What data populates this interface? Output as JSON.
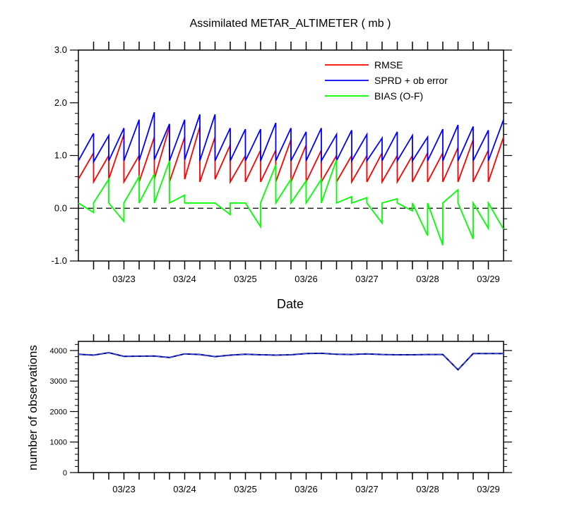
{
  "chart_data": [
    {
      "type": "line",
      "title": "Assimilated METAR_ALTIMETER ( mb )",
      "xlabel": "Date",
      "ylabel": "",
      "ylim": [
        -1.0,
        3.0
      ],
      "yticks": [
        "-1.0",
        "0.0",
        "1.0",
        "2.0",
        "3.0"
      ],
      "xticks": [
        "03/23",
        "03/24",
        "03/25",
        "03/26",
        "03/27",
        "03/28",
        "03/29"
      ],
      "xtick_values": [
        2.75,
        3.75,
        4.75,
        5.75,
        6.75,
        7.75,
        8.75
      ],
      "xlim": [
        2.0,
        9.0
      ],
      "reference_line": 0.0,
      "legend": [
        "RMSE",
        "SPRD + ob error",
        "BIAS (O-F)"
      ],
      "sawtooth_x": [
        2.0,
        2.25,
        2.5,
        2.75,
        3.0,
        3.25,
        3.5,
        3.75,
        4.0,
        4.25,
        4.5,
        4.75,
        5.0,
        5.25,
        5.5,
        5.75,
        6.0,
        6.25,
        6.5,
        6.75,
        7.0,
        7.25,
        7.5,
        7.75,
        8.0,
        8.25,
        8.5,
        8.75
      ],
      "series": [
        {
          "name": "RMSE",
          "color": "#ff0000",
          "start": [
            0.55,
            0.5,
            0.55,
            0.5,
            0.5,
            0.55,
            0.5,
            0.55,
            0.5,
            0.55,
            0.5,
            0.5,
            0.5,
            0.5,
            0.5,
            0.5,
            0.5,
            0.5,
            0.5,
            0.5,
            0.5,
            0.5,
            0.5,
            0.5,
            0.5,
            0.5,
            0.5,
            0.5
          ],
          "end": [
            1.05,
            1.0,
            1.4,
            1.0,
            1.35,
            1.55,
            1.35,
            1.55,
            1.35,
            1.2,
            1.0,
            1.1,
            1.1,
            1.3,
            1.2,
            1.1,
            1.0,
            1.0,
            1.0,
            1.05,
            1.0,
            1.0,
            1.05,
            1.05,
            1.15,
            1.3,
            1.1,
            1.35
          ]
        },
        {
          "name": "SPRD + ob error",
          "color": "#0000ff",
          "start": [
            0.9,
            0.88,
            0.9,
            0.9,
            0.9,
            0.92,
            0.9,
            0.92,
            0.9,
            0.9,
            0.9,
            0.9,
            0.9,
            0.9,
            0.9,
            0.9,
            0.9,
            0.9,
            0.9,
            0.9,
            0.9,
            0.9,
            0.9,
            0.9,
            0.9,
            0.9,
            0.9,
            0.9
          ],
          "end": [
            1.42,
            1.38,
            1.52,
            1.68,
            1.82,
            1.6,
            1.68,
            1.78,
            1.78,
            1.52,
            1.5,
            1.5,
            1.62,
            1.52,
            1.45,
            1.52,
            1.4,
            1.48,
            1.4,
            1.33,
            1.45,
            1.38,
            1.35,
            1.5,
            1.58,
            1.55,
            1.48,
            1.68
          ]
        },
        {
          "name": "BIAS (O-F)",
          "color": "#00ff00",
          "start": [
            0.1,
            0.1,
            0.1,
            0.1,
            0.1,
            0.1,
            0.1,
            0.1,
            0.1,
            0.1,
            0.1,
            0.1,
            0.1,
            0.1,
            0.1,
            0.1,
            0.1,
            0.1,
            0.1,
            0.1,
            0.1,
            0.1,
            0.1,
            0.1,
            0.1,
            0.1,
            0.1,
            0.1
          ],
          "end": [
            -0.08,
            0.55,
            -0.25,
            0.6,
            0.65,
            0.9,
            0.25,
            0.1,
            0.1,
            -0.12,
            0.1,
            -0.35,
            0.82,
            0.55,
            0.52,
            0.55,
            0.92,
            0.22,
            0.2,
            -0.28,
            0.18,
            -0.05,
            -0.52,
            -0.7,
            0.35,
            -0.58,
            -0.38,
            -0.4
          ]
        }
      ]
    },
    {
      "type": "line",
      "title": "",
      "xlabel": "",
      "ylabel": "number of observations",
      "ylim": [
        0,
        4300
      ],
      "yticks": [
        "0",
        "1000",
        "2000",
        "3000",
        "4000"
      ],
      "xticks": [
        "03/23",
        "03/24",
        "03/25",
        "03/26",
        "03/27",
        "03/28",
        "03/29"
      ],
      "xtick_values": [
        2.75,
        3.75,
        4.75,
        5.75,
        6.75,
        7.75,
        8.75
      ],
      "xlim": [
        2.0,
        9.0
      ],
      "x": [
        2.0,
        2.25,
        2.5,
        2.75,
        3.0,
        3.25,
        3.5,
        3.75,
        4.0,
        4.25,
        4.5,
        4.75,
        5.0,
        5.25,
        5.5,
        5.75,
        6.0,
        6.25,
        6.5,
        6.75,
        7.0,
        7.25,
        7.5,
        7.75,
        8.0,
        8.25,
        8.5,
        8.75,
        9.0
      ],
      "series": [
        {
          "name": "number of observations",
          "color": "#000080",
          "values": [
            3880,
            3850,
            3930,
            3810,
            3815,
            3820,
            3770,
            3890,
            3870,
            3800,
            3850,
            3880,
            3860,
            3850,
            3860,
            3900,
            3910,
            3880,
            3870,
            3890,
            3870,
            3860,
            3860,
            3870,
            3870,
            3370,
            3900,
            3900,
            3900
          ]
        }
      ]
    }
  ]
}
